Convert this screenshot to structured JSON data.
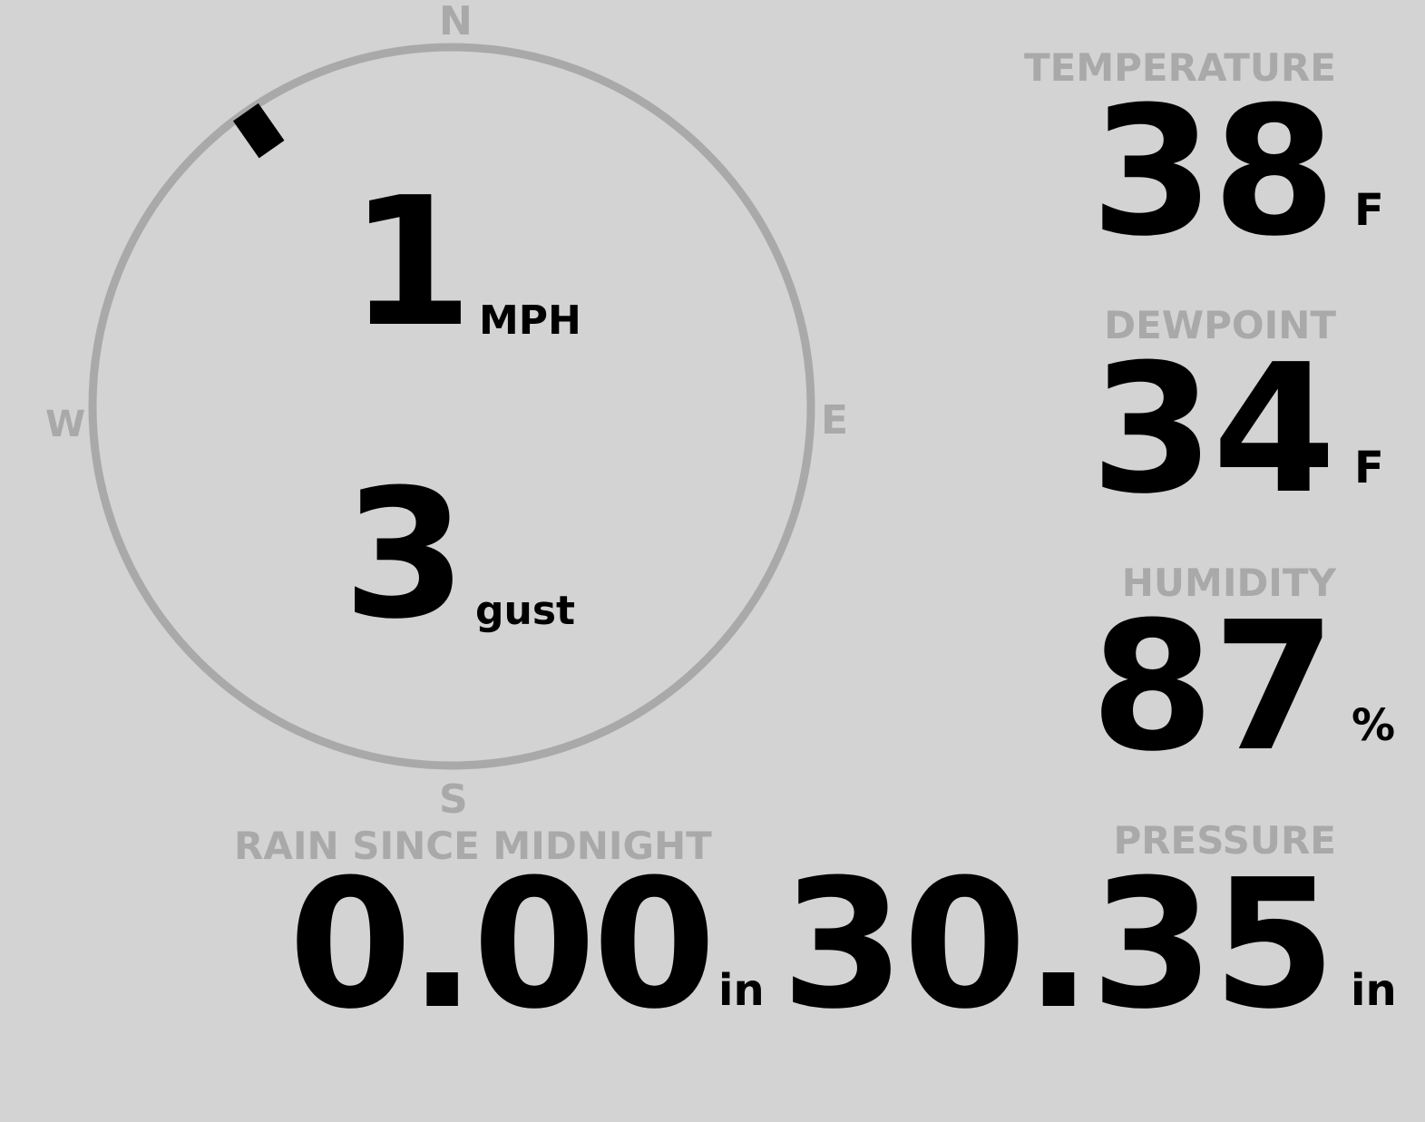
{
  "wind": {
    "speed": "1",
    "speed_unit": "MPH",
    "gust": "3",
    "gust_label": "gust",
    "direction_degrees": 325,
    "compass": {
      "n": "N",
      "e": "E",
      "s": "S",
      "w": "W"
    }
  },
  "temperature": {
    "label": "TEMPERATURE",
    "value": "38",
    "unit": "F"
  },
  "dewpoint": {
    "label": "DEWPOINT",
    "value": "34",
    "unit": "F"
  },
  "humidity": {
    "label": "HUMIDITY",
    "value": "87",
    "unit": "%"
  },
  "pressure": {
    "label": "PRESSURE",
    "value": "30.35",
    "unit": "in"
  },
  "rain": {
    "label": "RAIN SINCE MIDNIGHT",
    "value": "0.00",
    "unit": "in"
  },
  "colors": {
    "background": "#d3d3d3",
    "label": "#a9a9a9",
    "value": "#000000"
  }
}
